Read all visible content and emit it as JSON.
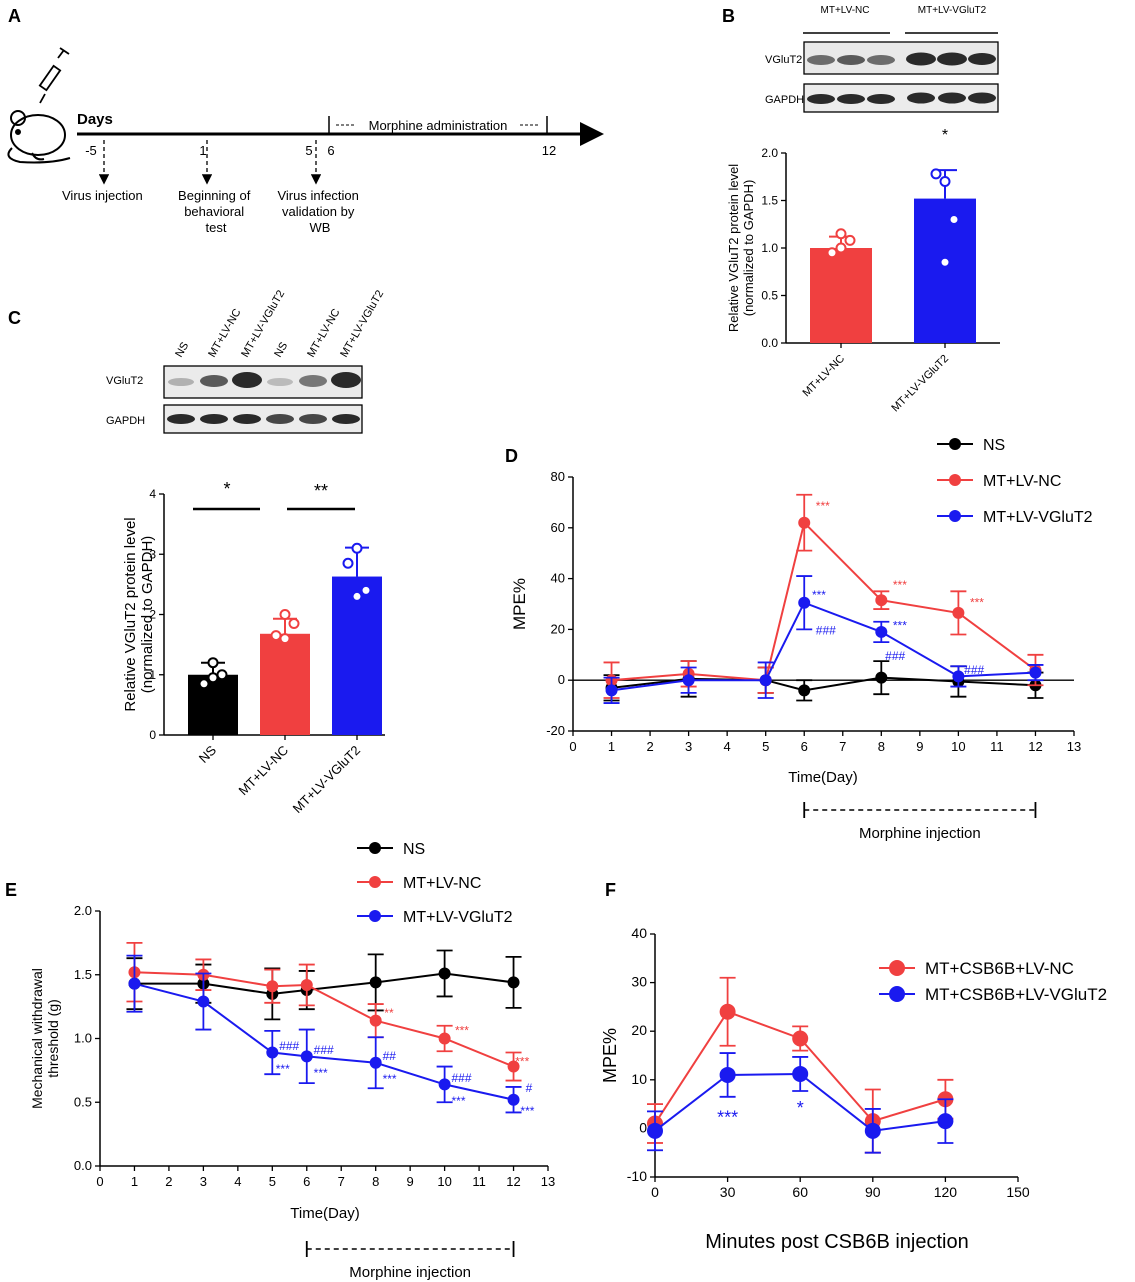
{
  "panel_labels": {
    "A": "A",
    "B": "B",
    "C": "C",
    "D": "D",
    "E": "E",
    "F": "F"
  },
  "colors": {
    "ns": "#000000",
    "nc": "#f04040",
    "vg": "#1a1aef"
  },
  "panel_a": {
    "days_label": "Days",
    "period_label": "Morphine administration",
    "ticks": [
      "-5",
      "1",
      "5",
      "6",
      "12"
    ],
    "events": [
      "Virus injection",
      "Beginning of behavioral test",
      "Virus infection validation by WB"
    ],
    "event_lines": {
      "virus": [
        "Virus injection"
      ],
      "behav": [
        "Beginning of",
        "behavioral",
        "test"
      ],
      "wb": [
        "Virus infection",
        "validation by",
        "WB"
      ]
    }
  },
  "panel_b": {
    "group_labels": [
      "MT+LV-NC",
      "MT+LV-VGluT2"
    ],
    "blot_labels": [
      "VGluT2",
      "GAPDH"
    ]
  },
  "panel_c": {
    "lane_labels": [
      "NS",
      "MT+LV-NC",
      "MT+LV-VGluT2",
      "NS",
      "MT+LV-NC",
      "MT+LV-VGluT2"
    ],
    "blot_labels": [
      "VGluT2",
      "GAPDH"
    ]
  },
  "chart_data": [
    {
      "id": "B",
      "type": "bar",
      "categories": [
        "MT+LV-NC",
        "MT+LV-VGluT2"
      ],
      "values": [
        1.0,
        1.52
      ],
      "errors": [
        0.12,
        0.3
      ],
      "points": [
        [
          1.0,
          0.95,
          1.08,
          1.15
        ],
        [
          1.7,
          1.78,
          1.3,
          0.85
        ]
      ],
      "ylabel": "Relative VGluT2 protein level (normalized to GAPDH)",
      "ylim": [
        0,
        2.0
      ],
      "yticks": [
        "0.0",
        "0.5",
        "1.0",
        "1.5",
        "2.0"
      ],
      "significance": [
        "*"
      ]
    },
    {
      "id": "C",
      "type": "bar",
      "categories": [
        "NS",
        "MT+LV-NC",
        "MT+LV-VGluT2"
      ],
      "values": [
        1.0,
        1.68,
        2.63
      ],
      "errors": [
        0.2,
        0.25,
        0.48
      ],
      "points": [
        [
          1.2,
          0.85,
          1.0,
          0.95
        ],
        [
          2.0,
          1.65,
          1.85,
          1.6
        ],
        [
          3.1,
          2.85,
          2.4,
          2.3
        ]
      ],
      "ylabel": "Relative VGluT2 protein level (normalized to GAPDH)",
      "ylim": [
        0,
        4
      ],
      "yticks": [
        "0",
        "1",
        "2",
        "3",
        "4"
      ],
      "significance": [
        "*",
        "**"
      ]
    },
    {
      "id": "D",
      "type": "line",
      "ylabel": "MPE%",
      "xlabel": "Time(Day)",
      "xlim": [
        0,
        13
      ],
      "ylim": [
        -20,
        80
      ],
      "xticks": [
        "0",
        "1",
        "2",
        "3",
        "4",
        "5",
        "6",
        "7",
        "8",
        "9",
        "10",
        "11",
        "12",
        "13"
      ],
      "yticks": [
        "-20",
        "0",
        "20",
        "40",
        "60",
        "80"
      ],
      "period_label": "Morphine injection",
      "period": [
        6,
        12
      ],
      "legend": [
        "NS",
        "MT+LV-NC",
        "MT+LV-VGluT2"
      ],
      "series": [
        {
          "name": "NS",
          "x": [
            1,
            3,
            5,
            6,
            8,
            10,
            12
          ],
          "y": [
            -3,
            0.5,
            0,
            -4,
            1,
            -0.5,
            -2
          ],
          "err": [
            5,
            7,
            5,
            4,
            6.5,
            6,
            5
          ]
        },
        {
          "name": "MT+LV-NC",
          "x": [
            1,
            3,
            5,
            6,
            8,
            10,
            12
          ],
          "y": [
            0,
            2.5,
            0,
            62,
            31.5,
            26.5,
            4
          ],
          "err": [
            7,
            5,
            5,
            11,
            3.5,
            8.5,
            6
          ]
        },
        {
          "name": "MT+LV-VGluT2",
          "x": [
            1,
            3,
            5,
            6,
            8,
            10,
            12
          ],
          "y": [
            -4,
            0,
            0,
            30.5,
            19,
            1.5,
            3
          ],
          "err": [
            5,
            5,
            7,
            10.5,
            4,
            4,
            3
          ]
        }
      ],
      "annotations_nc": [
        "***",
        "***",
        "***"
      ],
      "annotations_vg": [
        "***",
        "###",
        "***",
        "###",
        "###"
      ]
    },
    {
      "id": "E",
      "type": "line",
      "ylabel": "Mechanical withdrawal threshold (g)",
      "xlabel": "Time(Day)",
      "xlim": [
        0,
        13
      ],
      "ylim": [
        0,
        2.0
      ],
      "xticks": [
        "0",
        "1",
        "2",
        "3",
        "4",
        "5",
        "6",
        "7",
        "8",
        "9",
        "10",
        "11",
        "12",
        "13"
      ],
      "yticks": [
        "0.0",
        "0.5",
        "1.0",
        "1.5",
        "2.0"
      ],
      "period_label": "Morphine injection",
      "period": [
        6,
        12
      ],
      "legend": [
        "NS",
        "MT+LV-NC",
        "MT+LV-VGluT2"
      ],
      "series": [
        {
          "name": "NS",
          "x": [
            1,
            3,
            5,
            6,
            8,
            10,
            12
          ],
          "y": [
            1.43,
            1.43,
            1.35,
            1.38,
            1.44,
            1.51,
            1.44
          ],
          "err": [
            0.2,
            0.15,
            0.2,
            0.15,
            0.22,
            0.18,
            0.2
          ]
        },
        {
          "name": "MT+LV-NC",
          "x": [
            1,
            3,
            5,
            6,
            8,
            10,
            12
          ],
          "y": [
            1.52,
            1.5,
            1.41,
            1.42,
            1.14,
            1.0,
            0.78
          ],
          "err": [
            0.23,
            0.12,
            0.13,
            0.16,
            0.13,
            0.1,
            0.11
          ]
        },
        {
          "name": "MT+LV-VGluT2",
          "x": [
            1,
            3,
            5,
            6,
            8,
            10,
            12
          ],
          "y": [
            1.43,
            1.29,
            0.89,
            0.86,
            0.81,
            0.64,
            0.52
          ],
          "err": [
            0.22,
            0.22,
            0.17,
            0.21,
            0.2,
            0.14,
            0.1
          ]
        }
      ],
      "annotations_nc": [
        "**",
        "***",
        "***"
      ],
      "annotations_vg": [
        "###",
        "***",
        "###",
        "***",
        "##",
        "***",
        "###",
        "***",
        "#",
        "***"
      ]
    },
    {
      "id": "F",
      "type": "line",
      "ylabel": "MPE%",
      "xlabel": "Minutes post CSB6B injection",
      "xlim": [
        0,
        150
      ],
      "ylim": [
        -10,
        40
      ],
      "xticks": [
        "0",
        "30",
        "60",
        "90",
        "120",
        "150"
      ],
      "yticks": [
        "-10",
        "0",
        "10",
        "20",
        "30",
        "40"
      ],
      "legend": [
        "MT+CSB6B+LV-NC",
        "MT+CSB6B+LV-VGluT2"
      ],
      "series": [
        {
          "name": "MT+CSB6B+LV-NC",
          "x": [
            0,
            30,
            60,
            90,
            120
          ],
          "y": [
            1,
            24,
            18.5,
            1.5,
            6
          ],
          "err": [
            4,
            7,
            2.5,
            6.5,
            4
          ]
        },
        {
          "name": "MT+CSB6B+LV-VGluT2",
          "x": [
            0,
            30,
            60,
            90,
            120
          ],
          "y": [
            -0.5,
            11,
            11.2,
            -0.5,
            1.5
          ],
          "err": [
            4,
            4.5,
            3.5,
            4.5,
            4.5
          ]
        }
      ],
      "annotations": [
        "***",
        "*"
      ]
    }
  ]
}
